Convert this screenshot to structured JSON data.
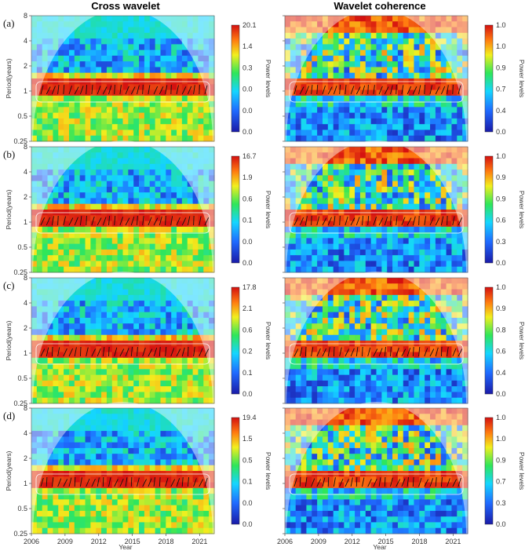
{
  "chart_data": {
    "type": "heatmap",
    "titles": {
      "left": "Cross wavelet",
      "right": "Wavelet coherence"
    },
    "xlabel": "Year",
    "ylabel": "Period(years)",
    "colorbar_label": "Power levels",
    "x_ticks": [
      "2006",
      "2009",
      "2012",
      "2015",
      "2018",
      "2021"
    ],
    "y_ticks": [
      "8",
      "4",
      "2",
      "1",
      "0.5",
      "0.25"
    ],
    "panels": [
      {
        "label": "(a)",
        "cross_colorbar": [
          "20.1",
          "1.4",
          "0.3",
          "0.0",
          "0.0",
          "0.0"
        ],
        "coherence_colorbar": [
          "1.0",
          "1.0",
          "0.9",
          "0.7",
          "0.4",
          "0.0"
        ]
      },
      {
        "label": "(b)",
        "cross_colorbar": [
          "16.7",
          "1.9",
          "0.6",
          "0.1",
          "0.0",
          "0.0"
        ],
        "coherence_colorbar": [
          "1.0",
          "0.9",
          "0.9",
          "0.6",
          "0.3",
          "0.0"
        ]
      },
      {
        "label": "(c)",
        "cross_colorbar": [
          "17.8",
          "2.1",
          "0.6",
          "0.2",
          "0.1",
          "0.0"
        ],
        "coherence_colorbar": [
          "1.0",
          "0.9",
          "0.8",
          "0.6",
          "0.4",
          "0.0"
        ]
      },
      {
        "label": "(d)",
        "cross_colorbar": [
          "19.4",
          "1.5",
          "0.5",
          "0.1",
          "0.0",
          "0.0"
        ],
        "coherence_colorbar": [
          "1.0",
          "1.0",
          "0.9",
          "0.7",
          "0.3",
          "0.0"
        ]
      }
    ],
    "colorscale": [
      "#1a1aa8",
      "#1f6bff",
      "#14d6ff",
      "#2fe65a",
      "#f2ef1e",
      "#ff7a10",
      "#d41010"
    ],
    "palette": {
      "shade": "#ffffff",
      "arrow": "#111111",
      "contour": "#ffffff"
    }
  }
}
